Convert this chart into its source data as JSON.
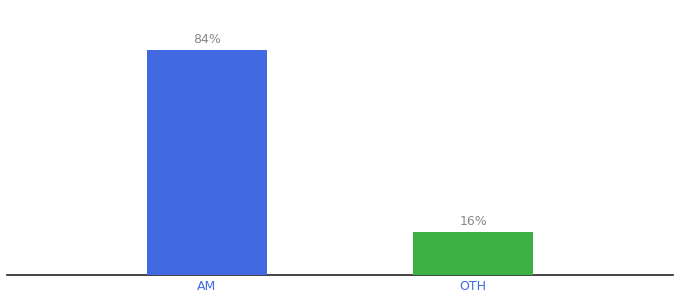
{
  "categories": [
    "AM",
    "OTH"
  ],
  "values": [
    84,
    16
  ],
  "bar_colors": [
    "#4169E1",
    "#3CB043"
  ],
  "labels": [
    "84%",
    "16%"
  ],
  "ylim": [
    0,
    100
  ],
  "background_color": "#ffffff",
  "bar_width": 0.18,
  "label_fontsize": 9,
  "tick_fontsize": 9,
  "tick_color": "#4169E1",
  "label_color": "#888888",
  "x_positions": [
    0.3,
    0.7
  ]
}
